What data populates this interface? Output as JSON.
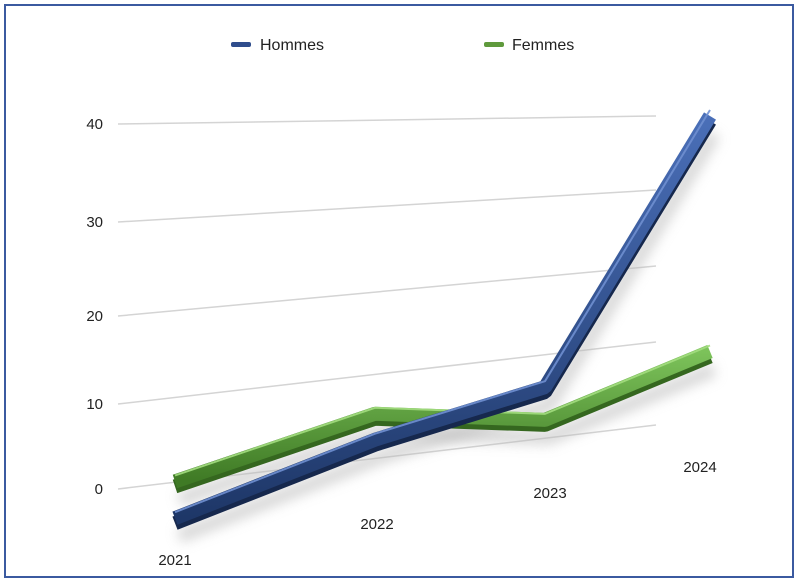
{
  "chart_data": {
    "type": "line",
    "title": "",
    "xlabel": "",
    "ylabel": "",
    "categories": [
      "2021",
      "2022",
      "2023",
      "2024"
    ],
    "ylim": [
      0,
      40
    ],
    "yticks": [
      "0",
      "10",
      "20",
      "30",
      "40"
    ],
    "grid": true,
    "legend_position": "top",
    "series": [
      {
        "name": "Hommes",
        "values": [
          -3,
          3,
          7,
          40
        ],
        "color": "#2f4d8c"
      },
      {
        "name": "Femmes",
        "values": [
          1,
          6,
          3,
          10
        ],
        "color": "#5f9a3c"
      }
    ]
  }
}
